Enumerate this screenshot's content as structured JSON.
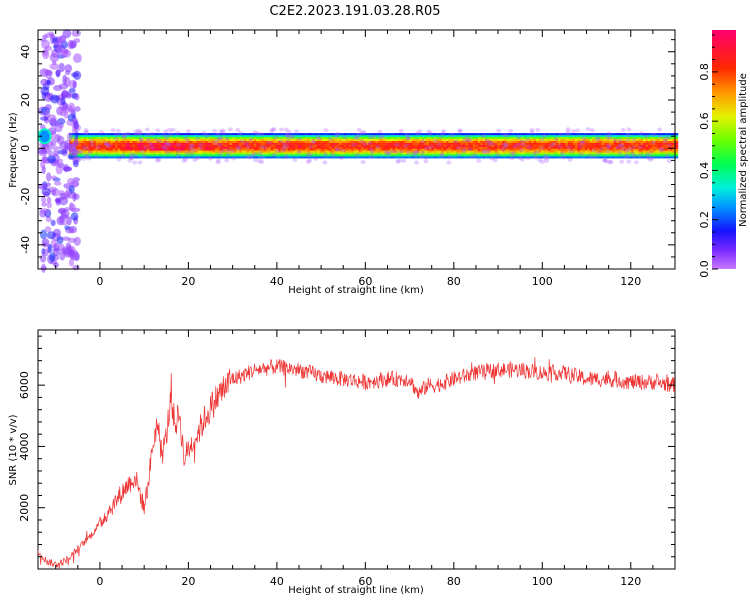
{
  "title": "C2E2.2023.191.03.28.R05",
  "chart_data": [
    {
      "type": "heatmap",
      "xlabel": "Height of straight line (km)",
      "ylabel": "Frequency (Hz)",
      "xlim": [
        -14,
        130
      ],
      "ylim": [
        -50,
        49
      ],
      "xticks": [
        0,
        20,
        40,
        60,
        80,
        100,
        120
      ],
      "yticks": [
        -40,
        -20,
        0,
        20,
        40
      ],
      "colorbar": {
        "label": "Normalized spectral amplitude",
        "range": [
          0.0,
          0.97
        ],
        "ticks": [
          "0.0",
          "0.2",
          "0.4",
          "0.6",
          "0.8"
        ],
        "tick_values": [
          0.0,
          0.2,
          0.4,
          0.6,
          0.8
        ],
        "colormap": "gist_rainbow_r"
      },
      "band": {
        "center_hz": 1,
        "half_width_hz": 4,
        "peak_amplitude": 0.97,
        "background_amplitude": 0.12,
        "notes_peaks_km": [
          6,
          9,
          12,
          14,
          16,
          18,
          24
        ]
      }
    },
    {
      "type": "line",
      "xlabel": "Height of straight line (km)",
      "ylabel": "SNR (10 * v/v)",
      "xlim": [
        -14,
        130
      ],
      "ylim": [
        0,
        7800
      ],
      "xticks": [
        0,
        20,
        40,
        60,
        80,
        100,
        120
      ],
      "yticks": [
        2000,
        4000,
        6000
      ],
      "series": [
        {
          "color": "#ee3333",
          "x": [
            -14,
            -12,
            -10,
            -8,
            -6,
            -4,
            -2,
            0,
            2,
            4,
            6,
            8,
            9,
            10,
            11,
            12,
            13,
            14,
            15,
            16,
            17,
            18,
            19,
            20,
            22,
            24,
            26,
            28,
            30,
            32,
            35,
            40,
            45,
            50,
            55,
            60,
            65,
            70,
            72,
            74,
            76,
            80,
            85,
            90,
            95,
            100,
            105,
            110,
            115,
            120,
            125,
            130
          ],
          "y": [
            600,
            250,
            150,
            250,
            500,
            800,
            1100,
            1500,
            1900,
            2300,
            2700,
            3000,
            2500,
            2000,
            2900,
            4100,
            4800,
            3700,
            4300,
            5600,
            4700,
            5100,
            3600,
            3900,
            4400,
            5000,
            5500,
            5900,
            6200,
            6300,
            6500,
            6600,
            6500,
            6300,
            6200,
            6100,
            6200,
            6200,
            5700,
            6000,
            6000,
            6200,
            6400,
            6500,
            6500,
            6400,
            6400,
            6200,
            6200,
            6100,
            6100,
            6000
          ]
        }
      ]
    }
  ]
}
